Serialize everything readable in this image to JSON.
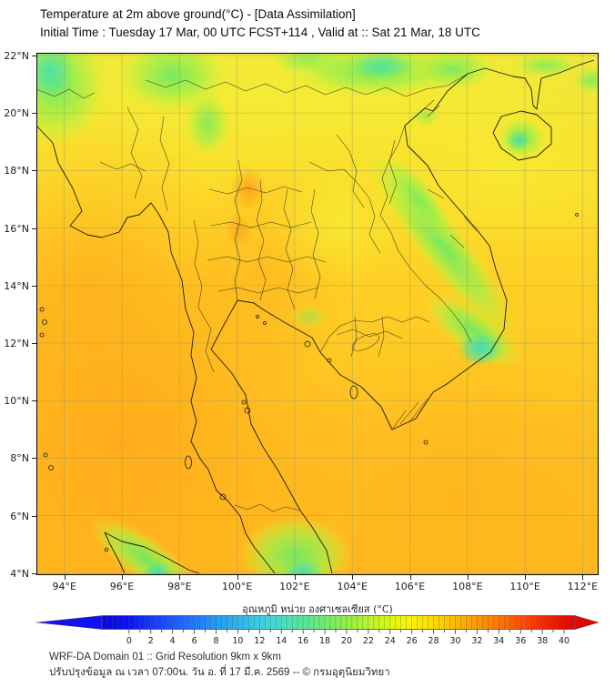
{
  "header": {
    "title": "Temperature at 2m above ground(°C) - [Data Assimilation]",
    "subtitle": "Initial Time : Tuesday 17 Mar, 00 UTC FCST+114 , Valid at :: Sat 21 Mar, 18 UTC"
  },
  "map": {
    "lat_labels": [
      "22°N",
      "20°N",
      "18°N",
      "16°N",
      "14°N",
      "12°N",
      "10°N",
      "8°N",
      "6°N",
      "4°N"
    ],
    "lon_labels": [
      "94°E",
      "96°E",
      "98°E",
      "100°E",
      "102°E",
      "104°E",
      "106°E",
      "108°E",
      "110°E",
      "112°E"
    ],
    "grid_interval_deg": 2,
    "palette": {
      "sea_warm_orange": "#ffb41e",
      "hot_orange": "#ffa61c",
      "warm_amber": "#fdd02a",
      "mild_yellow": "#f7ec33",
      "cool_green": "#7dea4e",
      "cold_teal": "#3fdcb4"
    }
  },
  "colorbar": {
    "label": "อุณหภูมิ หน่วย องศาเซลเซียส (°C)",
    "unit": "°C",
    "range_min": 0,
    "range_max": 40,
    "major_tick_step": 2,
    "tick_labels": [
      "0",
      "2",
      "4",
      "6",
      "8",
      "10",
      "12",
      "14",
      "16",
      "18",
      "20",
      "22",
      "24",
      "26",
      "28",
      "30",
      "32",
      "34",
      "36",
      "38",
      "40"
    ],
    "anchor_values": [
      -2,
      0,
      2,
      4,
      6,
      8,
      10,
      12,
      14,
      16,
      18,
      20,
      22,
      24,
      26,
      28,
      30,
      32,
      34,
      36,
      38,
      40,
      42
    ],
    "anchor_colors": [
      "#0b06dc",
      "#0a12f2",
      "#1536fa",
      "#1b57fc",
      "#1f78fd",
      "#259af3",
      "#2db6e9",
      "#39cfe4",
      "#47dfc6",
      "#55e69b",
      "#6eea70",
      "#92ef47",
      "#b9f32b",
      "#def711",
      "#fbf403",
      "#ffda00",
      "#ffbb00",
      "#ff9900",
      "#ff7500",
      "#ff5000",
      "#fa2800",
      "#e80d00",
      "#dc0300"
    ],
    "left_arrow_color": "#1212ee",
    "right_arrow_color": "#e10600"
  },
  "footer": {
    "line1": "WRF-DA Domain 01 :: Grid Resolution 9km x 9km",
    "line2": "ปรับปรุงข้อมูล ณ เวลา 07:00น. วัน อ. ที่ 17 มี.ค. 2569 -- © กรมอุตุนิยมวิทยา"
  }
}
